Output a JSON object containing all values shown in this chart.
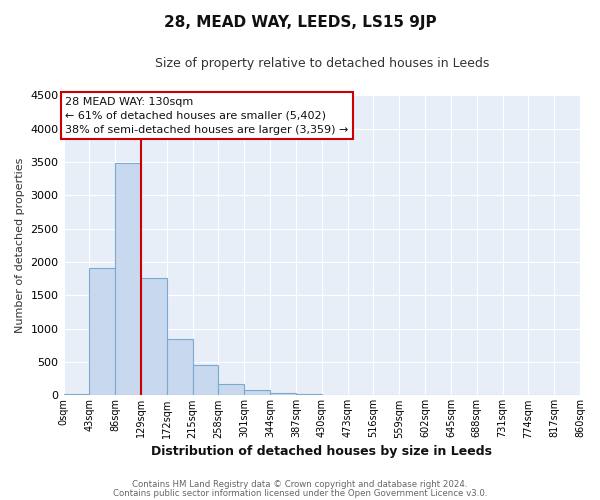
{
  "title": "28, MEAD WAY, LEEDS, LS15 9JP",
  "subtitle": "Size of property relative to detached houses in Leeds",
  "xlabel": "Distribution of detached houses by size in Leeds",
  "ylabel": "Number of detached properties",
  "bar_color": "#c8d8ee",
  "bar_edge_color": "#7aaace",
  "bin_edges": [
    0,
    43,
    86,
    129,
    172,
    215,
    258,
    301,
    344,
    387,
    430,
    473,
    516,
    559,
    602,
    645,
    688,
    731,
    774,
    817,
    860
  ],
  "bar_heights": [
    25,
    1910,
    3490,
    1760,
    840,
    455,
    170,
    80,
    40,
    18,
    8,
    4,
    0,
    0,
    0,
    0,
    0,
    0,
    0,
    0
  ],
  "tick_labels": [
    "0sqm",
    "43sqm",
    "86sqm",
    "129sqm",
    "172sqm",
    "215sqm",
    "258sqm",
    "301sqm",
    "344sqm",
    "387sqm",
    "430sqm",
    "473sqm",
    "516sqm",
    "559sqm",
    "602sqm",
    "645sqm",
    "688sqm",
    "731sqm",
    "774sqm",
    "817sqm",
    "860sqm"
  ],
  "marker_line_bin_index": 3,
  "annotation_title": "28 MEAD WAY: 130sqm",
  "annotation_line1": "← 61% of detached houses are smaller (5,402)",
  "annotation_line2": "38% of semi-detached houses are larger (3,359) →",
  "annotation_box_color": "#ffffff",
  "annotation_border_color": "#cc0000",
  "vline_color": "#cc0000",
  "ylim": [
    0,
    4500
  ],
  "yticks": [
    0,
    500,
    1000,
    1500,
    2000,
    2500,
    3000,
    3500,
    4000,
    4500
  ],
  "footer1": "Contains HM Land Registry data © Crown copyright and database right 2024.",
  "footer2": "Contains public sector information licensed under the Open Government Licence v3.0.",
  "background_color": "#ffffff",
  "plot_bg_color": "#e8eef8",
  "grid_color": "#ffffff"
}
